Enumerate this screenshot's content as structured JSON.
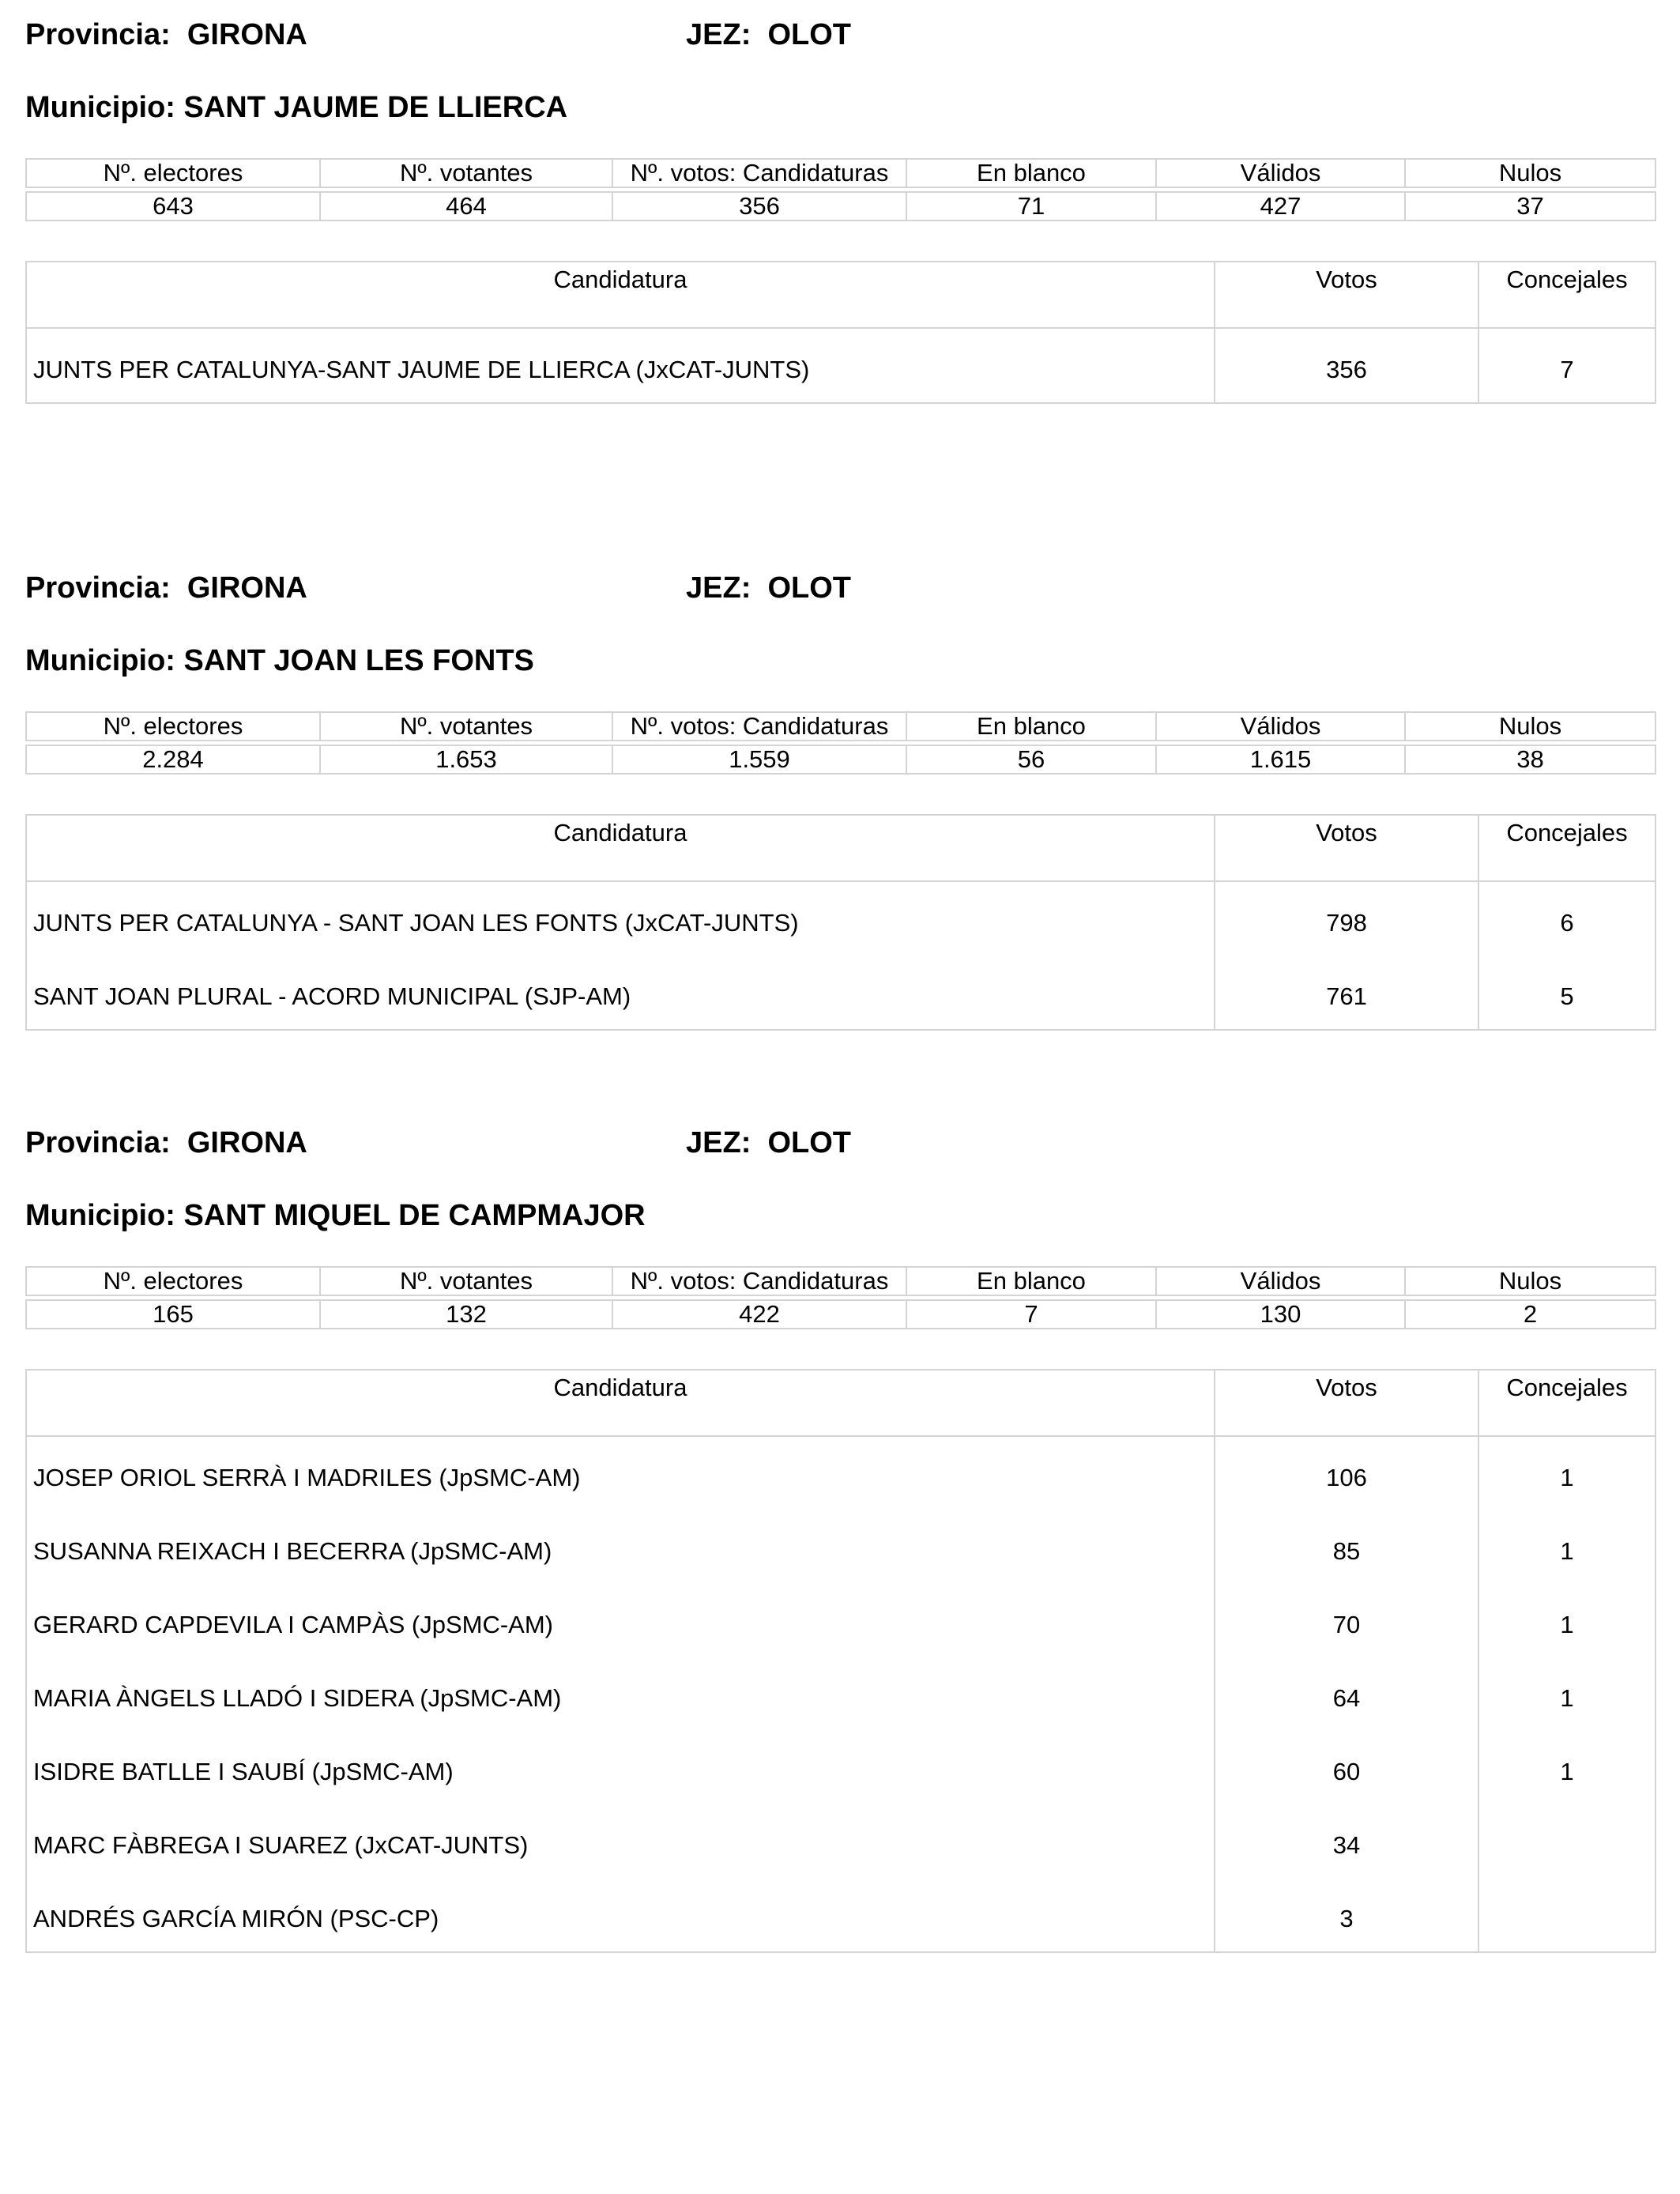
{
  "labels": {
    "provincia": "Provincia:  GIRONA",
    "jez": "JEZ:  OLOT",
    "summary_headers": [
      "Nº. electores",
      "Nº. votantes",
      "Nº. votos: Candidaturas",
      "En blanco",
      "Válidos",
      "Nulos"
    ],
    "candidate_headers": [
      "Candidatura",
      "Votos",
      "Concejales"
    ]
  },
  "sections": [
    {
      "municipio": "Municipio: SANT JAUME DE LLIERCA",
      "summary": [
        "643",
        "464",
        "356",
        "71",
        "427",
        "37"
      ],
      "rows": [
        {
          "name": "JUNTS PER CATALUNYA-SANT JAUME DE LLIERCA (JxCAT-JUNTS)",
          "votos": "356",
          "concejales": "7"
        }
      ]
    },
    {
      "municipio": "Municipio: SANT JOAN LES FONTS",
      "summary": [
        "2.284",
        "1.653",
        "1.559",
        "56",
        "1.615",
        "38"
      ],
      "rows": [
        {
          "name": "JUNTS PER CATALUNYA - SANT JOAN LES FONTS (JxCAT-JUNTS)",
          "votos": "798",
          "concejales": "6"
        },
        {
          "name": "SANT JOAN PLURAL - ACORD MUNICIPAL (SJP-AM)",
          "votos": "761",
          "concejales": "5"
        }
      ]
    },
    {
      "municipio": "Municipio: SANT MIQUEL DE CAMPMAJOR",
      "summary": [
        "165",
        "132",
        "422",
        "7",
        "130",
        "2"
      ],
      "rows": [
        {
          "name": "JOSEP ORIOL SERRÀ I MADRILES (JpSMC-AM)",
          "votos": "106",
          "concejales": "1"
        },
        {
          "name": "SUSANNA REIXACH I BECERRA (JpSMC-AM)",
          "votos": "85",
          "concejales": "1"
        },
        {
          "name": "GERARD CAPDEVILA I CAMPÀS (JpSMC-AM)",
          "votos": "70",
          "concejales": "1"
        },
        {
          "name": "MARIA ÀNGELS LLADÓ I SIDERA (JpSMC-AM)",
          "votos": "64",
          "concejales": "1"
        },
        {
          "name": "ISIDRE BATLLE I SAUBÍ (JpSMC-AM)",
          "votos": "60",
          "concejales": "1"
        },
        {
          "name": "MARC FÀBREGA I SUAREZ (JxCAT-JUNTS)",
          "votos": "34",
          "concejales": ""
        },
        {
          "name": "ANDRÉS GARCÍA MIRÓN (PSC-CP)",
          "votos": "3",
          "concejales": ""
        }
      ]
    }
  ]
}
